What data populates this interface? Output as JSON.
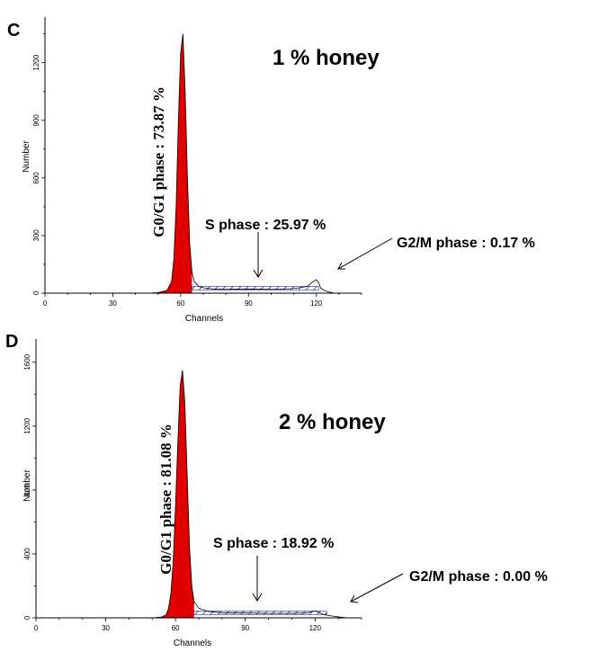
{
  "chart_data": [
    {
      "type": "area",
      "panel_label": "C",
      "condition": "1 % honey",
      "xlabel": "Channels",
      "ylabel": "Number",
      "xlim": [
        0,
        140
      ],
      "ylim": [
        0,
        1400
      ],
      "x_ticks": [
        0,
        30,
        60,
        90,
        120
      ],
      "y_ticks": [
        0,
        300,
        600,
        900,
        1200
      ],
      "series": [
        {
          "x": [
            46,
            50,
            54,
            56,
            57,
            58,
            59,
            60,
            61,
            62,
            63,
            64,
            65,
            66,
            68,
            70,
            74,
            80,
            90,
            100,
            110,
            116,
            118,
            120,
            121,
            122,
            124,
            126,
            128
          ],
          "values": [
            0,
            3,
            15,
            60,
            180,
            450,
            900,
            1250,
            1350,
            1050,
            600,
            260,
            110,
            60,
            35,
            28,
            22,
            20,
            22,
            20,
            24,
            35,
            55,
            70,
            55,
            25,
            12,
            5,
            0
          ]
        }
      ],
      "annotations": {
        "g0g1": "G0/G1 phase : 73.87 %",
        "s": "S phase : 25.97 %",
        "g2m": "G2/M phase : 0.17 %"
      }
    },
    {
      "type": "area",
      "panel_label": "D",
      "condition": "2 % honey",
      "xlabel": "Channels",
      "ylabel": "Number",
      "xlim": [
        0,
        140
      ],
      "ylim": [
        0,
        1700
      ],
      "x_ticks": [
        0,
        30,
        60,
        90,
        120
      ],
      "y_ticks": [
        0,
        400,
        800,
        1200,
        1600
      ],
      "series": [
        {
          "x": [
            50,
            54,
            56,
            57,
            58,
            59,
            60,
            61,
            62,
            63,
            64,
            65,
            66,
            67,
            68,
            70,
            74,
            80,
            90,
            100,
            110,
            116,
            118,
            120,
            122,
            124,
            126,
            128,
            130,
            132,
            134
          ],
          "values": [
            0,
            5,
            20,
            60,
            150,
            350,
            700,
            1100,
            1450,
            1550,
            1350,
            900,
            450,
            200,
            100,
            60,
            40,
            32,
            30,
            28,
            28,
            30,
            35,
            45,
            30,
            20,
            14,
            10,
            6,
            3,
            0
          ]
        }
      ],
      "annotations": {
        "g0g1": "G0/G1 phase : 81.08 %",
        "s": "S phase : 18.92 %",
        "g2m": "G2/M phase : 0.00 %"
      }
    }
  ]
}
